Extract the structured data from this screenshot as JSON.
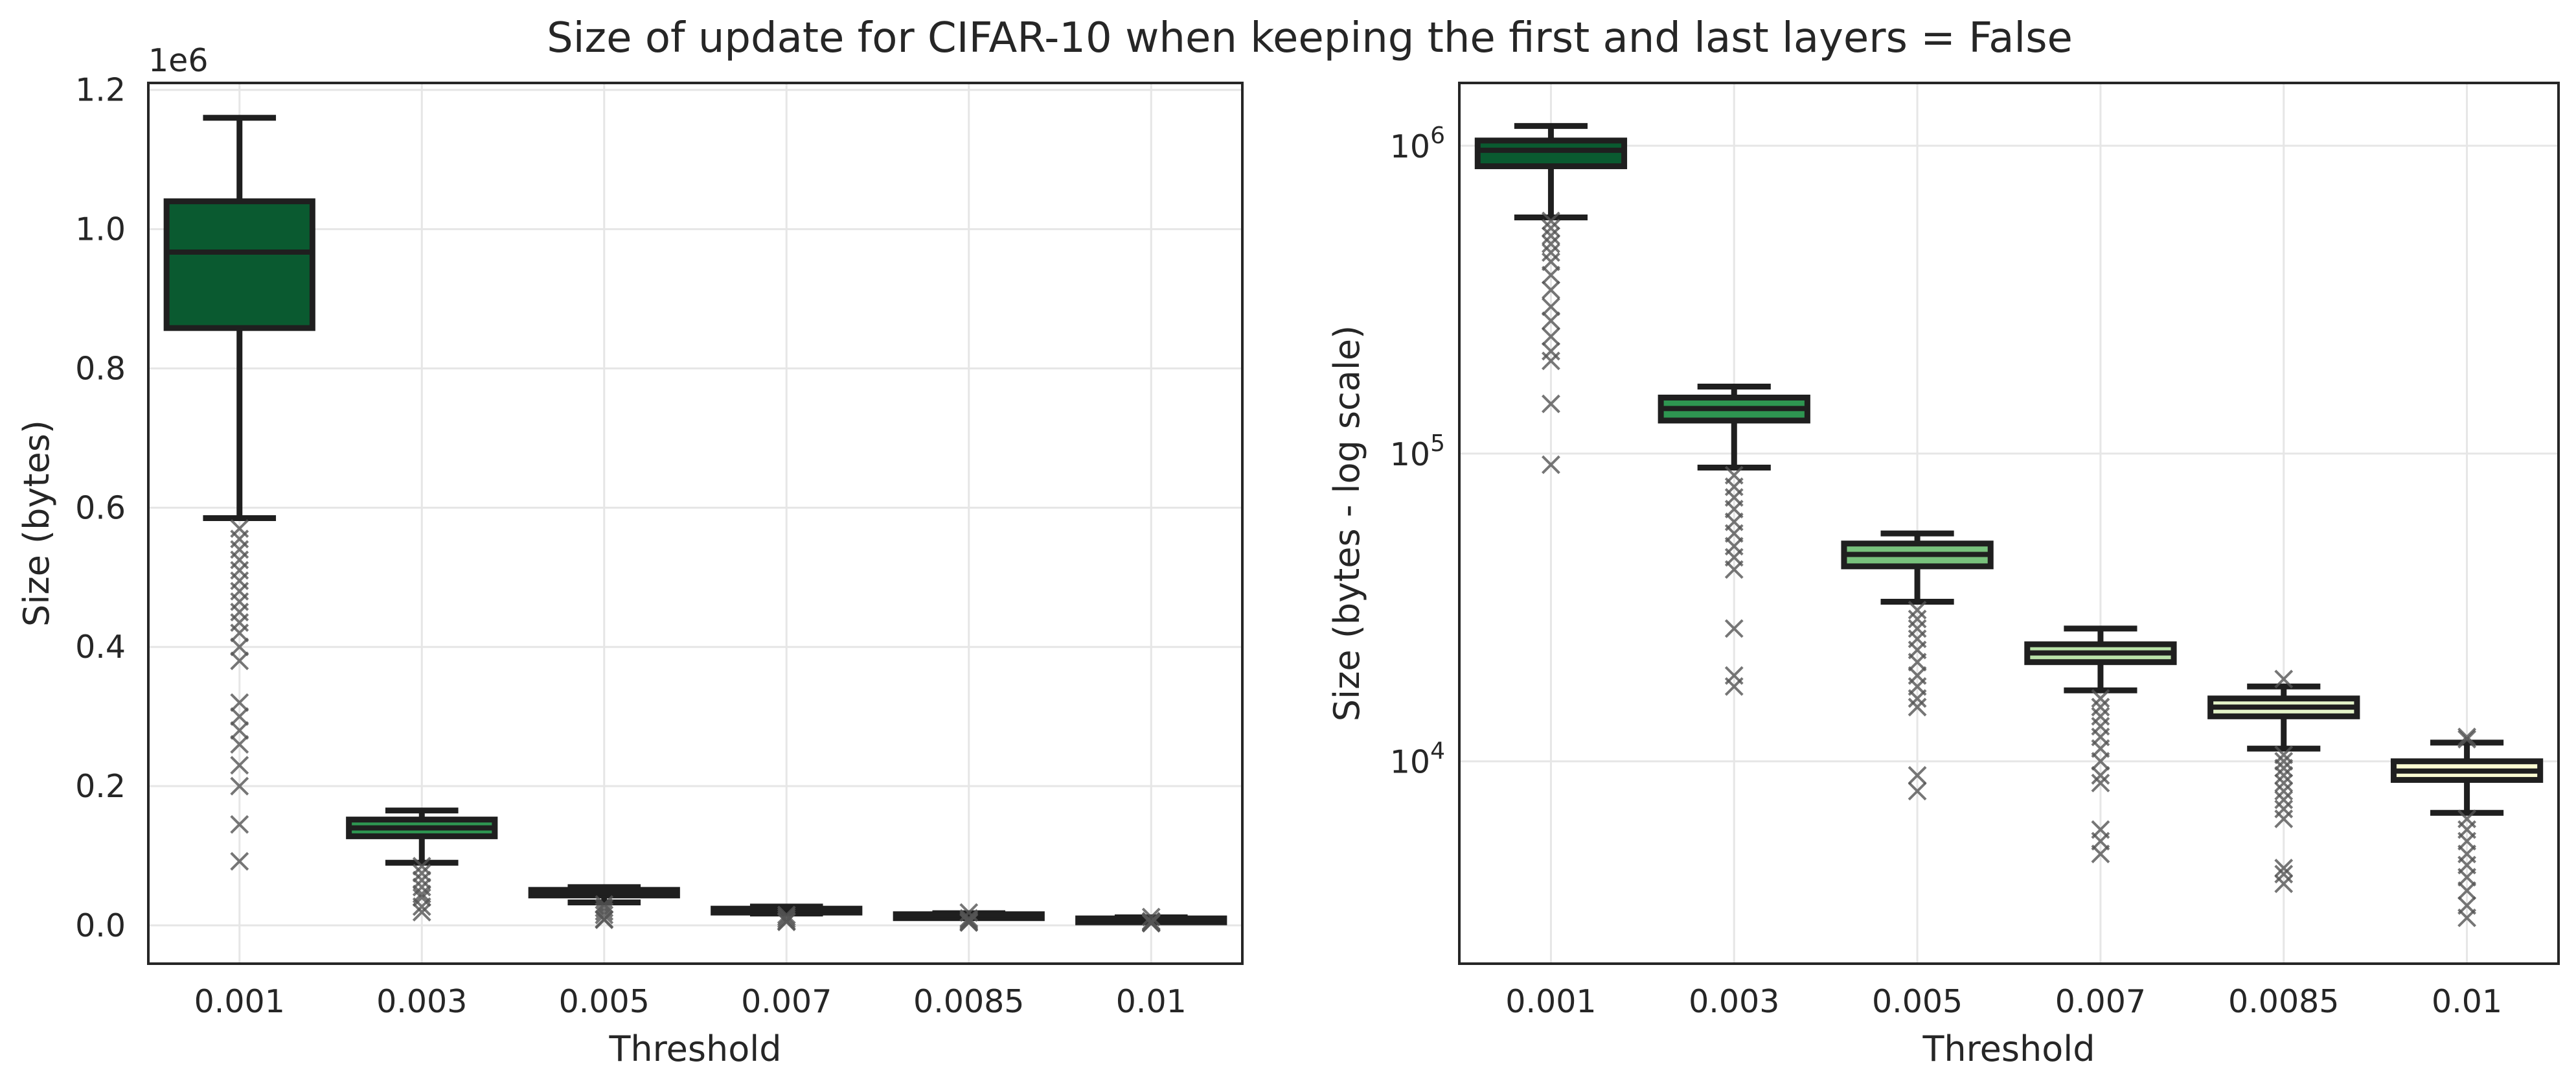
{
  "figure": {
    "title": "Size of update for CIFAR-10 when keeping the first and last layers = False"
  },
  "palette": [
    "#0a5a30",
    "#2e9651",
    "#78c17c",
    "#b9e2a8",
    "#e3f3c8",
    "#fafbd2"
  ],
  "chart_data": [
    {
      "type": "box",
      "xlabel": "Threshold",
      "ylabel": "Size (bytes)",
      "yscale": "linear",
      "ylim": [
        -55000,
        1210000
      ],
      "yticks": [
        0,
        200000,
        400000,
        600000,
        800000,
        1000000,
        1200000
      ],
      "ytick_labels": [
        "0.0",
        "0.2",
        "0.4",
        "0.6",
        "0.8",
        "1.0",
        "1.2"
      ],
      "offset_label": "1e6",
      "grid": true,
      "categories": [
        "0.001",
        "0.003",
        "0.005",
        "0.007",
        "0.0085",
        "0.01"
      ],
      "boxes": [
        {
          "q1": 858000,
          "median": 967000,
          "q3": 1040000,
          "whislo": 585000,
          "whishi": 1160000,
          "outliers": [
            570000,
            555000,
            540000,
            525000,
            510000,
            495000,
            480000,
            465000,
            450000,
            435000,
            420000,
            400000,
            380000,
            320000,
            300000,
            280000,
            260000,
            230000,
            200000,
            145000,
            92000
          ]
        },
        {
          "q1": 128000,
          "median": 140000,
          "q3": 152000,
          "whislo": 90000,
          "whishi": 165000,
          "outliers": [
            85000,
            75000,
            65000,
            55000,
            45000,
            40000,
            27000,
            19000
          ]
        },
        {
          "q1": 43000,
          "median": 47000,
          "q3": 51000,
          "whislo": 33000,
          "whishi": 55000,
          "outliers": [
            30000,
            25000,
            20000,
            15000,
            9000,
            8000
          ]
        },
        {
          "q1": 21000,
          "median": 22500,
          "q3": 24000,
          "whislo": 17000,
          "whishi": 27000,
          "outliers": [
            15000,
            12000,
            9000,
            6000,
            5000
          ]
        },
        {
          "q1": 14000,
          "median": 15000,
          "q3": 16000,
          "whislo": 11000,
          "whishi": 17500,
          "outliers": [
            18500,
            10000,
            8000,
            6000,
            4500,
            4000
          ]
        },
        {
          "q1": 8700,
          "median": 9300,
          "q3": 10000,
          "whislo": 6800,
          "whishi": 11500,
          "outliers": [
            12000,
            6000,
            5000,
            4000,
            3500,
            3000
          ]
        }
      ]
    },
    {
      "type": "box",
      "xlabel": "Threshold",
      "ylabel": "Size (bytes - log scale)",
      "yscale": "log",
      "ylim": [
        2200,
        1600000
      ],
      "yticks": [
        10000,
        100000,
        1000000
      ],
      "ytick_labels": [
        "10^4",
        "10^5",
        "10^6"
      ],
      "grid": true,
      "categories": [
        "0.001",
        "0.003",
        "0.005",
        "0.007",
        "0.0085",
        "0.01"
      ],
      "boxes": [
        {
          "q1": 858000,
          "median": 967000,
          "q3": 1040000,
          "whislo": 585000,
          "whishi": 1160000,
          "outliers": [
            570000,
            540000,
            510000,
            480000,
            450000,
            420000,
            380000,
            340000,
            300000,
            270000,
            240000,
            215000,
            200000,
            145000,
            92000
          ]
        },
        {
          "q1": 128000,
          "median": 140000,
          "q3": 152000,
          "whislo": 90000,
          "whishi": 165000,
          "outliers": [
            85000,
            78000,
            72000,
            66000,
            60000,
            55000,
            50000,
            46000,
            42000,
            27000,
            19000,
            17500
          ]
        },
        {
          "q1": 43000,
          "median": 47000,
          "q3": 51000,
          "whislo": 33000,
          "whishi": 55000,
          "outliers": [
            31000,
            29000,
            27000,
            25000,
            23000,
            21000,
            19000,
            17500,
            16000,
            15000,
            9000,
            8000
          ]
        },
        {
          "q1": 21000,
          "median": 22500,
          "q3": 24000,
          "whislo": 17000,
          "whishi": 27000,
          "outliers": [
            16000,
            15000,
            14000,
            13000,
            12000,
            11000,
            10000,
            9000,
            8500,
            6000,
            5500,
            5000
          ]
        },
        {
          "q1": 14000,
          "median": 15000,
          "q3": 16000,
          "whislo": 11000,
          "whishi": 17500,
          "outliers": [
            18500,
            10500,
            10000,
            9500,
            9000,
            8500,
            8000,
            7500,
            7000,
            6500,
            4500,
            4300,
            4000
          ]
        },
        {
          "q1": 8700,
          "median": 9300,
          "q3": 10000,
          "whislo": 6800,
          "whishi": 11500,
          "outliers": [
            12000,
            11800,
            6500,
            6000,
            5500,
            5000,
            4600,
            4200,
            3800,
            3400,
            3100
          ]
        }
      ]
    }
  ]
}
